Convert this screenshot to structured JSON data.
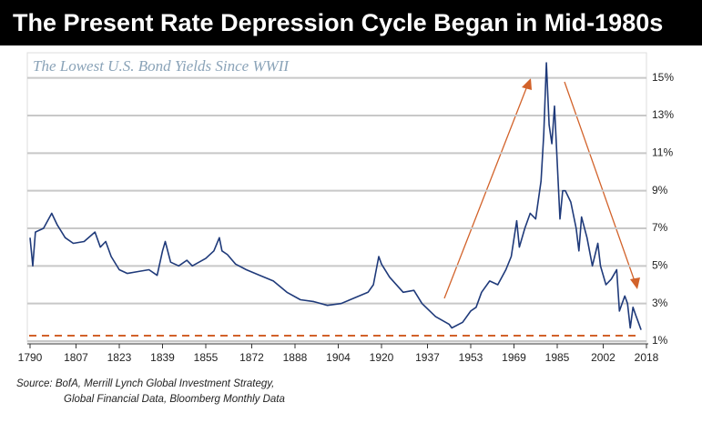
{
  "chart_data": {
    "type": "line",
    "title": "The Present Rate Depression Cycle Began in Mid-1980s",
    "subtitle": "The Lowest U.S. Bond Yields Since WWII",
    "source": [
      "Source: BofA, Merrill Lynch Global Investment Strategy,",
      "Global Financial Data, Bloomberg Monthly Data"
    ],
    "xlim": [
      1790,
      2018
    ],
    "xticks": [
      1790,
      1807,
      1823,
      1839,
      1855,
      1872,
      1888,
      1904,
      1920,
      1937,
      1953,
      1969,
      1985,
      2002,
      2018
    ],
    "ylim": [
      1,
      16
    ],
    "yticks": [
      {
        "value": 1,
        "label": "1%"
      },
      {
        "value": 3,
        "label": "3%"
      },
      {
        "value": 5,
        "label": "5%"
      },
      {
        "value": 7,
        "label": "7%"
      },
      {
        "value": 9,
        "label": "9%"
      },
      {
        "value": 11,
        "label": "11%"
      },
      {
        "value": 13,
        "label": "13%"
      },
      {
        "value": 15,
        "label": "15%"
      }
    ],
    "grid": true,
    "series": [
      {
        "color": "#1f3a7a",
        "x": [
          1790,
          1791,
          1792,
          1795,
          1798,
          1800,
          1803,
          1806,
          1810,
          1814,
          1816,
          1818,
          1820,
          1823,
          1826,
          1830,
          1834,
          1837,
          1839,
          1840,
          1842,
          1845,
          1848,
          1850,
          1855,
          1858,
          1860,
          1861,
          1863,
          1866,
          1870,
          1875,
          1880,
          1885,
          1890,
          1895,
          1900,
          1905,
          1910,
          1915,
          1917,
          1919,
          1920,
          1923,
          1928,
          1932,
          1935,
          1940,
          1945,
          1946,
          1950,
          1953,
          1955,
          1957,
          1960,
          1963,
          1966,
          1968,
          1970,
          1971,
          1973,
          1975,
          1977,
          1979,
          1980,
          1981,
          1982,
          1983,
          1984,
          1985,
          1986,
          1987,
          1988,
          1990,
          1992,
          1993,
          1994,
          1996,
          1998,
          2000,
          2001,
          2003,
          2005,
          2007,
          2008,
          2010,
          2011,
          2012,
          2013,
          2014,
          2015,
          2016
        ],
        "values": [
          6.5,
          5.0,
          6.8,
          7.0,
          7.8,
          7.2,
          6.5,
          6.2,
          6.3,
          6.8,
          6.0,
          6.3,
          5.5,
          4.8,
          4.6,
          4.7,
          4.8,
          4.5,
          5.8,
          6.3,
          5.2,
          5.0,
          5.3,
          5.0,
          5.4,
          5.8,
          6.5,
          5.8,
          5.6,
          5.1,
          4.8,
          4.5,
          4.2,
          3.6,
          3.2,
          3.1,
          2.9,
          3.0,
          3.3,
          3.6,
          4.0,
          5.5,
          5.1,
          4.4,
          3.6,
          3.7,
          3.0,
          2.3,
          1.9,
          1.7,
          2.0,
          2.6,
          2.8,
          3.6,
          4.2,
          4.0,
          4.8,
          5.5,
          7.4,
          6.0,
          7.0,
          7.8,
          7.5,
          9.5,
          12.0,
          15.8,
          12.5,
          11.5,
          13.5,
          10.5,
          7.5,
          9.0,
          9.0,
          8.4,
          7.0,
          5.8,
          7.6,
          6.5,
          5.0,
          6.2,
          5.0,
          4.0,
          4.3,
          4.8,
          2.6,
          3.4,
          3.0,
          1.7,
          2.8,
          2.4,
          2.0,
          1.6
        ]
      }
    ]
  }
}
